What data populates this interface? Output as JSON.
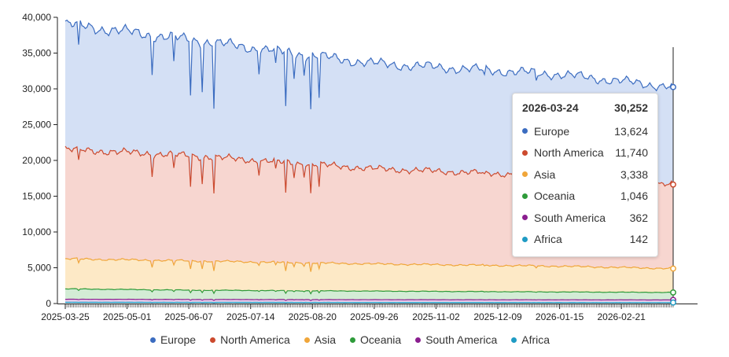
{
  "chart_data": {
    "type": "area",
    "stacked": true,
    "title": "",
    "xlabel": "",
    "ylabel": "",
    "x_range": [
      "2025-03-25",
      "2026-03-24"
    ],
    "ylim": [
      0,
      40000
    ],
    "y_ticks": [
      "0",
      "5,000",
      "10,000",
      "15,000",
      "20,000",
      "25,000",
      "30,000",
      "35,000",
      "40,000"
    ],
    "x_ticks": [
      "2025-03-25",
      "2025-05-01",
      "2025-06-07",
      "2025-07-14",
      "2025-08-20",
      "2025-09-26",
      "2025-11-02",
      "2025-12-09",
      "2026-01-15",
      "2026-02-21"
    ],
    "legend_position": "bottom-center",
    "series": [
      {
        "name": "Europe",
        "color": "#3b6cc0",
        "fill": "#d4e0f5",
        "trend": [
          [
            "2025-03-25",
            17500
          ],
          [
            "2025-06-07",
            16200
          ],
          [
            "2025-09-26",
            14700
          ],
          [
            "2026-01-15",
            14200
          ],
          [
            "2026-03-24",
            13624
          ]
        ]
      },
      {
        "name": "North America",
        "color": "#cc4a2e",
        "fill": "#f7d6d0",
        "trend": [
          [
            "2025-03-25",
            15300
          ],
          [
            "2025-06-07",
            14700
          ],
          [
            "2025-09-26",
            13300
          ],
          [
            "2026-01-15",
            12600
          ],
          [
            "2026-03-24",
            11740
          ]
        ]
      },
      {
        "name": "Asia",
        "color": "#f0a63a",
        "fill": "#fde9c6",
        "trend": [
          [
            "2025-03-25",
            4200
          ],
          [
            "2025-06-07",
            4100
          ],
          [
            "2025-09-26",
            3800
          ],
          [
            "2026-01-15",
            3600
          ],
          [
            "2026-03-24",
            3338
          ]
        ]
      },
      {
        "name": "Oceania",
        "color": "#2e9b3a",
        "fill": "#d3ecd5",
        "trend": [
          [
            "2025-03-25",
            1450
          ],
          [
            "2025-06-07",
            1300
          ],
          [
            "2025-09-26",
            1200
          ],
          [
            "2026-01-15",
            1100
          ],
          [
            "2026-03-24",
            1046
          ]
        ]
      },
      {
        "name": "South America",
        "color": "#8a1e8f",
        "fill": "#ead0ec",
        "trend": [
          [
            "2025-03-25",
            420
          ],
          [
            "2025-06-07",
            400
          ],
          [
            "2025-09-26",
            380
          ],
          [
            "2026-01-15",
            370
          ],
          [
            "2026-03-24",
            362
          ]
        ]
      },
      {
        "name": "Africa",
        "color": "#1f9bc4",
        "fill": "#cdebf5",
        "trend": [
          [
            "2025-03-25",
            180
          ],
          [
            "2025-06-07",
            170
          ],
          [
            "2025-09-26",
            155
          ],
          [
            "2026-01-15",
            148
          ],
          [
            "2026-03-24",
            142
          ]
        ]
      }
    ],
    "dips": [
      {
        "date": "2025-04-02",
        "factor": 0.91
      },
      {
        "date": "2025-05-16",
        "factor": 0.86
      },
      {
        "date": "2025-05-29",
        "factor": 0.9
      },
      {
        "date": "2025-06-08",
        "factor": 0.8
      },
      {
        "date": "2025-06-15",
        "factor": 0.82
      },
      {
        "date": "2025-06-22",
        "factor": 0.76
      },
      {
        "date": "2025-07-19",
        "factor": 0.92
      },
      {
        "date": "2025-07-29",
        "factor": 0.93
      },
      {
        "date": "2025-08-04",
        "factor": 0.78
      },
      {
        "date": "2025-08-09",
        "factor": 0.91
      },
      {
        "date": "2025-08-15",
        "factor": 0.93
      },
      {
        "date": "2025-08-19",
        "factor": 0.78
      },
      {
        "date": "2025-08-24",
        "factor": 0.84
      },
      {
        "date": "2025-12-01",
        "factor": 0.97
      },
      {
        "date": "2026-01-01",
        "factor": 0.96
      }
    ],
    "tooltip": {
      "date": "2026-03-24",
      "total": "30,252",
      "rows": [
        {
          "name": "Europe",
          "value": "13,624",
          "color": "#3b6cc0"
        },
        {
          "name": "North America",
          "value": "11,740",
          "color": "#cc4a2e"
        },
        {
          "name": "Asia",
          "value": "3,338",
          "color": "#f0a63a"
        },
        {
          "name": "Oceania",
          "value": "1,046",
          "color": "#2e9b3a"
        },
        {
          "name": "South America",
          "value": "362",
          "color": "#8a1e8f"
        },
        {
          "name": "Africa",
          "value": "142",
          "color": "#1f9bc4"
        }
      ]
    }
  }
}
